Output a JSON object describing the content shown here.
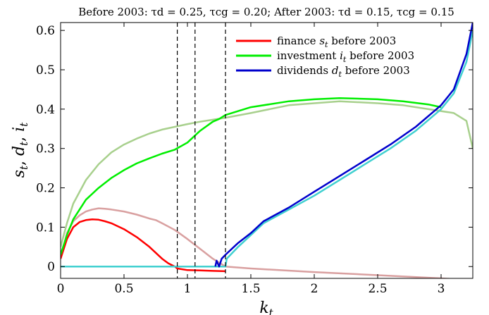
{
  "chart_data": {
    "type": "line",
    "title": "Before 2003: τd = 0.25, τcg = 0.20; After 2003: τd = 0.15, τcg = 0.15",
    "xlabel": "kt",
    "ylabel": "st, dt, it",
    "xlim": [
      0,
      3.25
    ],
    "ylim": [
      -0.03,
      0.62
    ],
    "x_ticks": [
      0,
      0.5,
      1,
      1.5,
      2,
      2.5,
      3
    ],
    "x_tick_labels": [
      "0",
      "0.5",
      "1",
      "1.5",
      "2",
      "2.5",
      "3"
    ],
    "y_ticks": [
      0,
      0.1,
      0.2,
      0.3,
      0.4,
      0.5,
      0.6
    ],
    "y_tick_labels": [
      "0",
      "0.1",
      "0.2",
      "0.3",
      "0.4",
      "0.5",
      "0.6"
    ],
    "grid": false,
    "legend_position": "top-right",
    "vertical_dashed_lines_x": [
      0.92,
      1.06,
      1.3
    ],
    "series": [
      {
        "name": "finance s_t after 2003",
        "color": "#d9a0a0",
        "x": [
          0,
          0.05,
          0.1,
          0.15,
          0.2,
          0.25,
          0.3,
          0.35,
          0.4,
          0.5,
          0.6,
          0.7,
          0.75,
          0.8,
          0.9,
          1.0,
          1.1,
          1.2,
          1.25,
          1.3,
          1.5,
          2.0,
          2.5,
          3.0,
          3.25
        ],
        "y": [
          0.02,
          0.085,
          0.115,
          0.13,
          0.14,
          0.145,
          0.148,
          0.147,
          0.145,
          0.14,
          0.132,
          0.122,
          0.118,
          0.11,
          0.093,
          0.07,
          0.045,
          0.02,
          0.01,
          0.0,
          -0.005,
          -0.014,
          -0.022,
          -0.03,
          -0.035
        ]
      },
      {
        "name": "finance s_t before 2003",
        "legend_label": "finance",
        "legend_var": "s",
        "legend_sub": "t",
        "legend_suffix": " before 2003",
        "color": "#ff0000",
        "x": [
          0,
          0.05,
          0.1,
          0.15,
          0.2,
          0.25,
          0.3,
          0.35,
          0.4,
          0.5,
          0.6,
          0.7,
          0.75,
          0.8,
          0.85,
          0.9,
          0.92,
          1.0,
          1.1,
          1.2,
          1.3
        ],
        "y": [
          0.02,
          0.07,
          0.1,
          0.113,
          0.118,
          0.12,
          0.119,
          0.115,
          0.11,
          0.095,
          0.075,
          0.05,
          0.035,
          0.02,
          0.008,
          0.0,
          -0.005,
          -0.009,
          -0.01,
          -0.011,
          -0.012
        ]
      },
      {
        "name": "investment i_t after 2003",
        "color": "#a8d08d",
        "x": [
          0,
          0.05,
          0.1,
          0.2,
          0.3,
          0.4,
          0.5,
          0.6,
          0.7,
          0.8,
          0.9,
          1.0,
          1.1,
          1.2,
          1.3,
          1.5,
          1.8,
          2.0,
          2.2,
          2.5,
          2.7,
          2.9,
          3.1,
          3.2,
          3.25
        ],
        "y": [
          0.05,
          0.11,
          0.16,
          0.22,
          0.26,
          0.29,
          0.31,
          0.325,
          0.338,
          0.348,
          0.355,
          0.362,
          0.368,
          0.373,
          0.378,
          0.39,
          0.41,
          0.415,
          0.42,
          0.415,
          0.41,
          0.4,
          0.39,
          0.37,
          0.3
        ]
      },
      {
        "name": "investment i_t before 2003",
        "legend_label": "investment",
        "legend_var": "i",
        "legend_sub": "t",
        "legend_suffix": " before 2003",
        "color": "#00ee00",
        "x": [
          0,
          0.05,
          0.1,
          0.2,
          0.3,
          0.4,
          0.5,
          0.6,
          0.7,
          0.8,
          0.9,
          1.0,
          1.1,
          1.2,
          1.25,
          1.3,
          1.5,
          1.8,
          2.0,
          2.2,
          2.5,
          2.7,
          2.9,
          3.0
        ],
        "y": [
          0.03,
          0.08,
          0.12,
          0.17,
          0.2,
          0.225,
          0.245,
          0.262,
          0.275,
          0.287,
          0.297,
          0.315,
          0.345,
          0.368,
          0.375,
          0.385,
          0.405,
          0.42,
          0.425,
          0.428,
          0.425,
          0.42,
          0.412,
          0.405
        ]
      },
      {
        "name": "dividends d_t after 2003",
        "color": "#40d0d0",
        "x": [
          0,
          0.5,
          1.0,
          1.2,
          1.3,
          1.31,
          1.4,
          1.5,
          1.6,
          1.8,
          2.0,
          2.2,
          2.4,
          2.6,
          2.8,
          3.0,
          3.1,
          3.2,
          3.25
        ],
        "y": [
          0,
          0,
          0,
          0,
          0,
          0.02,
          0.05,
          0.08,
          0.11,
          0.145,
          0.18,
          0.22,
          0.26,
          0.3,
          0.345,
          0.4,
          0.44,
          0.52,
          0.6
        ]
      },
      {
        "name": "dividends d_t before 2003",
        "legend_label": "dividends",
        "legend_var": "d",
        "legend_sub": "t",
        "legend_suffix": " before 2003",
        "color": "#0000cc",
        "x": [
          1.22,
          1.23,
          1.25,
          1.27,
          1.3,
          1.4,
          1.5,
          1.6,
          1.8,
          2.0,
          2.2,
          2.4,
          2.6,
          2.8,
          3.0,
          3.1,
          3.2,
          3.25
        ],
        "y": [
          0.0,
          0.015,
          0.0,
          0.02,
          0.03,
          0.06,
          0.085,
          0.115,
          0.15,
          0.19,
          0.23,
          0.27,
          0.31,
          0.355,
          0.41,
          0.45,
          0.54,
          0.62
        ]
      }
    ]
  }
}
